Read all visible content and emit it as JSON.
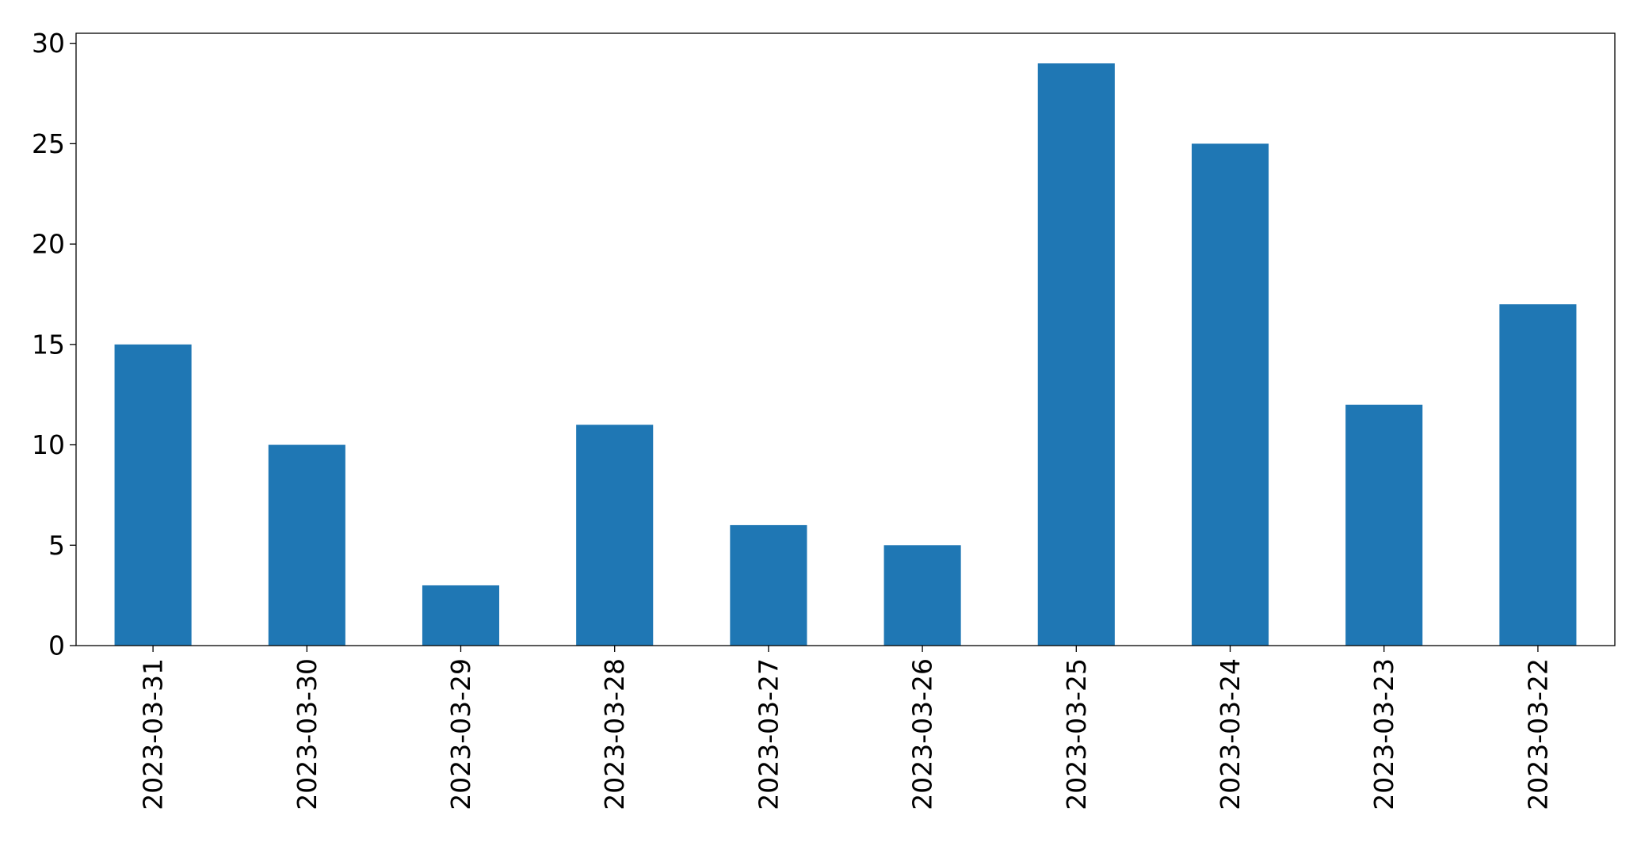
{
  "chart_data": {
    "type": "bar",
    "title": "",
    "xlabel": "",
    "ylabel": "",
    "categories": [
      "2023-03-31",
      "2023-03-30",
      "2023-03-29",
      "2023-03-28",
      "2023-03-27",
      "2023-03-26",
      "2023-03-25",
      "2023-03-24",
      "2023-03-23",
      "2023-03-22"
    ],
    "values": [
      15,
      10,
      3,
      11,
      6,
      5,
      29,
      25,
      12,
      17
    ],
    "ylim": [
      0,
      30.5
    ],
    "yticks": [
      0,
      5,
      10,
      15,
      20,
      25,
      30
    ],
    "ytick_labels": [
      "0",
      "5",
      "10",
      "15",
      "20",
      "25",
      "30"
    ],
    "grid": false,
    "legend": "none",
    "bar_color": "#1f77b4"
  }
}
